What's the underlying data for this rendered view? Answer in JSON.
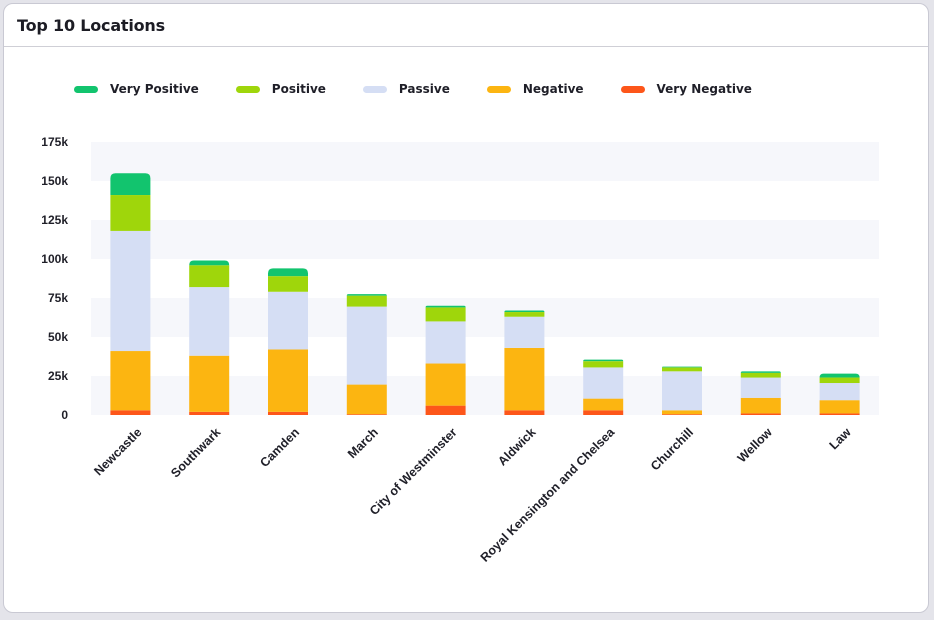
{
  "card": {
    "title": "Top 10 Locations"
  },
  "legend": [
    {
      "label": "Very Positive",
      "color": "#12c46e"
    },
    {
      "label": "Positive",
      "color": "#9fd60b"
    },
    {
      "label": "Passive",
      "color": "#d5def4"
    },
    {
      "label": "Negative",
      "color": "#fcb511"
    },
    {
      "label": "Very Negative",
      "color": "#fd561a"
    }
  ],
  "chart_data": {
    "type": "bar",
    "stacked": true,
    "title": "Top 10 Locations",
    "xlabel": "",
    "ylabel": "",
    "ylim": [
      0,
      175000
    ],
    "y_ticks": [
      0,
      25000,
      50000,
      75000,
      100000,
      125000,
      150000,
      175000
    ],
    "y_tick_labels": [
      "0",
      "25k",
      "50k",
      "75k",
      "100k",
      "125k",
      "150k",
      "175k"
    ],
    "grid": "alternating horizontal bands",
    "legend_position": "top-left",
    "categories": [
      "Newcastle",
      "Southwark",
      "Camden",
      "March",
      "City of Westminster",
      "Aldwick",
      "Royal Kensington and Chelsea",
      "Churchill",
      "Wellow",
      "Law"
    ],
    "series": [
      {
        "name": "Very Negative",
        "color": "#fd561a",
        "values": [
          3000,
          2000,
          2000,
          500,
          6000,
          3000,
          3000,
          500,
          1000,
          1000
        ]
      },
      {
        "name": "Negative",
        "color": "#fcb511",
        "values": [
          38000,
          36000,
          40000,
          19000,
          27000,
          40000,
          7500,
          2500,
          10000,
          8500
        ]
      },
      {
        "name": "Passive",
        "color": "#d5def4",
        "values": [
          77000,
          44000,
          37000,
          50000,
          27000,
          20000,
          20000,
          25000,
          13000,
          11000
        ]
      },
      {
        "name": "Positive",
        "color": "#9fd60b",
        "values": [
          23000,
          14000,
          10000,
          7000,
          9000,
          3000,
          4000,
          2500,
          3000,
          3500
        ]
      },
      {
        "name": "Very Positive",
        "color": "#12c46e",
        "values": [
          14000,
          3000,
          5000,
          1000,
          1000,
          1000,
          1000,
          500,
          1000,
          2500
        ]
      }
    ]
  }
}
